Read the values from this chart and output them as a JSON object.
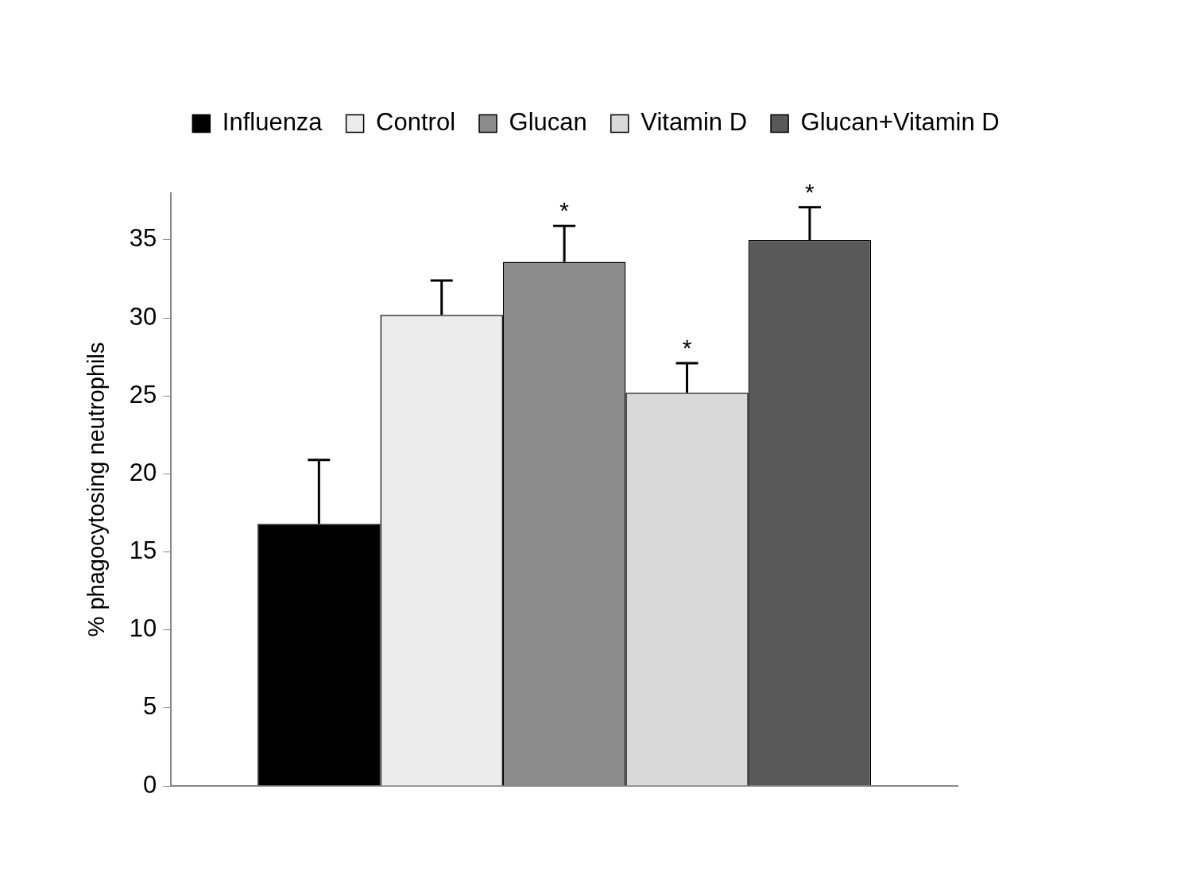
{
  "chart_data": {
    "type": "bar",
    "ylabel": "% phagocytosing neutrophils",
    "categories": [
      null
    ],
    "series": [
      {
        "name": "Influenza",
        "color": "#000000",
        "values": [
          16.8
        ],
        "errors": [
          [
            16.8,
            20.9
          ]
        ]
      },
      {
        "name": "Control",
        "color": "#ececec",
        "values": [
          30.2
        ],
        "errors": [
          [
            30.2,
            32.4
          ]
        ]
      },
      {
        "name": "Glucan",
        "color": "#8c8c8c",
        "values": [
          33.6
        ],
        "errors": [
          [
            33.6,
            35.9
          ]
        ],
        "value_labels": [
          "*"
        ]
      },
      {
        "name": "Vitamin D",
        "color": "#d9d9d9",
        "values": [
          25.2
        ],
        "errors": [
          [
            25.2,
            27.1
          ]
        ],
        "value_labels": [
          "*"
        ]
      },
      {
        "name": "Glucan+Vitamin D",
        "color": "#595959",
        "values": [
          35.0
        ],
        "errors": [
          [
            35.0,
            37.1
          ]
        ],
        "value_labels": [
          "*"
        ]
      }
    ],
    "ylim": [
      0,
      38
    ],
    "yticks": [
      0,
      5,
      10,
      15,
      20,
      25,
      30,
      35
    ],
    "grid": false,
    "legend": "top"
  }
}
